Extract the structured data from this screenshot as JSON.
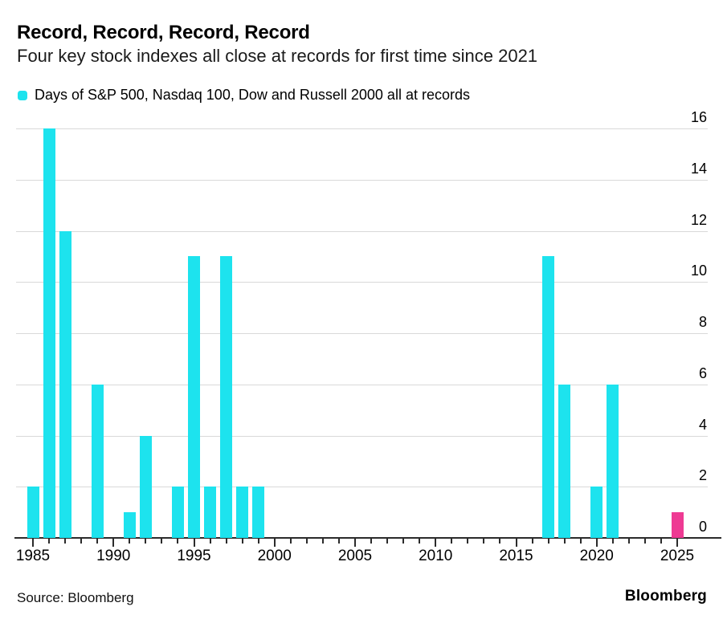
{
  "header": {
    "title": "Record, Record, Record, Record",
    "subtitle": "Four key stock indexes all close at records for first time since 2021"
  },
  "legend": {
    "label": "Days of S&P 500, Nasdaq 100, Dow and Russell 2000 all at records"
  },
  "footer": {
    "source": "Source: Bloomberg",
    "brand": "Bloomberg"
  },
  "chart_data": {
    "type": "bar",
    "title": "Record, Record, Record, Record",
    "subtitle": "Four key stock indexes all close at records for first time since 2021",
    "series_label": "Days of S&P 500, Nasdaq 100, Dow and Russell 2000 all at records",
    "xlabel": "",
    "ylabel": "",
    "points": [
      {
        "year": 1985,
        "value": 2
      },
      {
        "year": 1986,
        "value": 16
      },
      {
        "year": 1987,
        "value": 12
      },
      {
        "year": 1989,
        "value": 6
      },
      {
        "year": 1991,
        "value": 1
      },
      {
        "year": 1992,
        "value": 4
      },
      {
        "year": 1994,
        "value": 2
      },
      {
        "year": 1995,
        "value": 11
      },
      {
        "year": 1996,
        "value": 2
      },
      {
        "year": 1997,
        "value": 11
      },
      {
        "year": 1998,
        "value": 2
      },
      {
        "year": 1999,
        "value": 2
      },
      {
        "year": 2017,
        "value": 11
      },
      {
        "year": 2018,
        "value": 6
      },
      {
        "year": 2020,
        "value": 2
      },
      {
        "year": 2021,
        "value": 6
      },
      {
        "year": 2025,
        "value": 1
      }
    ],
    "highlight_year": 2025,
    "bar_color": "#1DE3EE",
    "highlight_color": "#EE3A93",
    "grid_color": "#D9D9D9",
    "axis_color": "#2B2B2B",
    "ylim": [
      0,
      16
    ],
    "ytick_step": 2,
    "yticks": [
      0,
      2,
      4,
      6,
      8,
      10,
      12,
      14,
      16
    ],
    "xaxis": {
      "tick_start": 1985,
      "tick_end": 2025,
      "label_step": 5,
      "labeled_ticks": [
        1985,
        1990,
        1995,
        2000,
        2005,
        2010,
        2015,
        2020,
        2025
      ]
    },
    "grid": true,
    "legend_position": "top-left",
    "ylabels_side": "right"
  }
}
